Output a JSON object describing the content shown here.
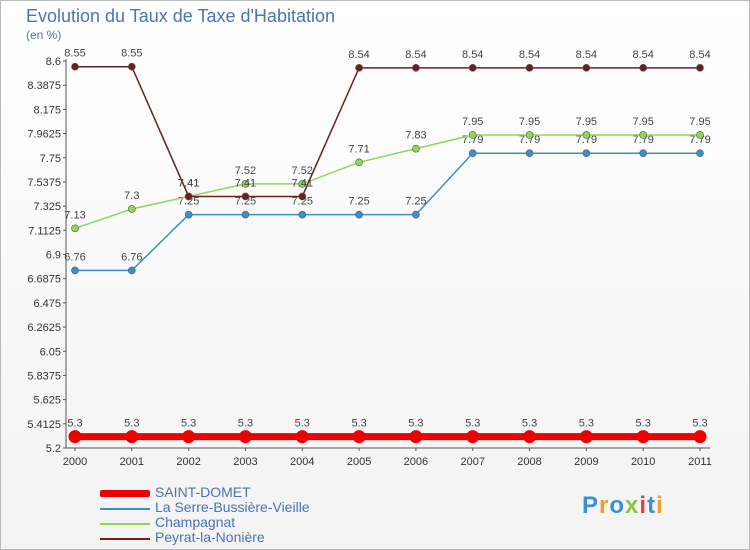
{
  "header": {
    "title": "Evolution du Taux de Taxe d'Habitation",
    "unit": "(en %)"
  },
  "brand": {
    "logo_letters": [
      "P",
      "r",
      "o",
      "x",
      "i",
      "t",
      "i"
    ],
    "logo_colors": [
      "#3a8fd6",
      "#f0a020",
      "#3a8fd6",
      "#8cc63f",
      "#e04040",
      "#3a8fd6",
      "#f0a020"
    ]
  },
  "chart_data": {
    "type": "line",
    "title": "Evolution du Taux de Taxe d'Habitation",
    "ylabel": "(en %)",
    "xlabel": "",
    "x": [
      "2000",
      "2001",
      "2002",
      "2003",
      "2004",
      "2005",
      "2006",
      "2007",
      "2008",
      "2009",
      "2010",
      "2011"
    ],
    "ylim": [
      5.2,
      8.6
    ],
    "yticks": [
      "8.6",
      "8.3875",
      "8.175",
      "7.9625",
      "7.75",
      "7.5375",
      "7.325",
      "7.1125",
      "6.9",
      "6.6875",
      "6.475",
      "6.2625",
      "6.05",
      "5.8375",
      "5.625",
      "5.4125",
      "5.2"
    ],
    "grid": false,
    "legend_position": "bottom-left",
    "series": [
      {
        "name": "SAINT-DOMET",
        "color": "#ee0000",
        "values": [
          5.3,
          5.3,
          5.3,
          5.3,
          5.3,
          5.3,
          5.3,
          5.3,
          5.3,
          5.3,
          5.3,
          5.3
        ],
        "labels": [
          "5.3",
          "5.3",
          "5.3",
          "5.3",
          "5.3",
          "5.3",
          "5.3",
          "5.3",
          "5.3",
          "5.3",
          "5.3",
          "5.3"
        ]
      },
      {
        "name": "La Serre-Bussière-Vieille",
        "color": "#3b8ed0",
        "values": [
          6.76,
          6.76,
          7.25,
          7.25,
          7.25,
          7.25,
          7.25,
          7.79,
          7.79,
          7.79,
          7.79,
          7.79
        ],
        "labels": [
          "6.76",
          "6.76",
          "7.25",
          "7.25",
          "7.25",
          "7.25",
          "7.25",
          "7.79",
          "7.79",
          "7.79",
          "7.79",
          "7.79"
        ]
      },
      {
        "name": "Champagnat",
        "color": "#8fd855",
        "values": [
          7.13,
          7.3,
          7.41,
          7.52,
          7.52,
          7.71,
          7.83,
          7.95,
          7.95,
          7.95,
          7.95,
          7.95
        ],
        "labels": [
          "7.13",
          "7.3",
          "7.41",
          "7.52",
          "7.52",
          "7.71",
          "7.83",
          "7.95",
          "7.95",
          "7.95",
          "7.95",
          "7.95"
        ]
      },
      {
        "name": "Peyrat-la-Nonière",
        "color": "#6b1f1f",
        "values": [
          8.55,
          8.55,
          7.41,
          7.41,
          7.41,
          8.54,
          8.54,
          8.54,
          8.54,
          8.54,
          8.54,
          8.54
        ],
        "labels": [
          "8.55",
          "8.55",
          "7.41",
          "7.41",
          "7.41",
          "8.54",
          "8.54",
          "8.54",
          "8.54",
          "8.54",
          "8.54",
          "8.54"
        ]
      }
    ]
  }
}
